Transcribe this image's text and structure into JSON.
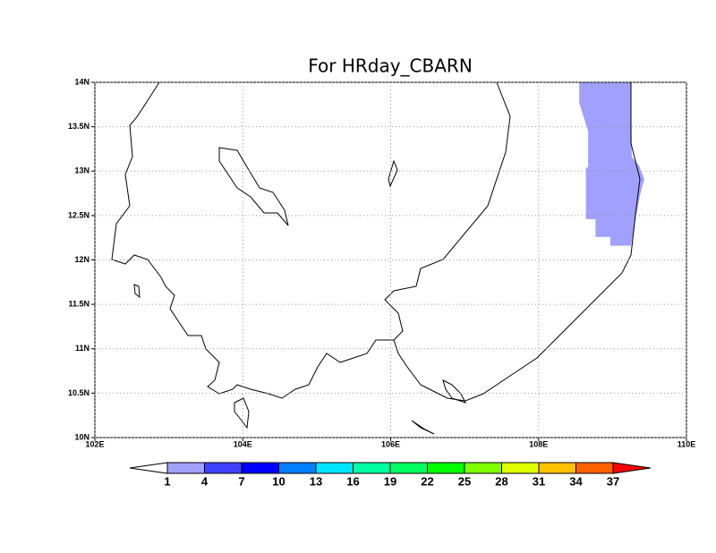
{
  "chart_data": {
    "type": "map",
    "title": "For HRday_CBARN",
    "xlim": [
      102,
      110
    ],
    "ylim": [
      10,
      14
    ],
    "xticks": [
      {
        "value": 102,
        "label": "102E"
      },
      {
        "value": 104,
        "label": "104E"
      },
      {
        "value": 106,
        "label": "106E"
      },
      {
        "value": 108,
        "label": "108E"
      },
      {
        "value": 110,
        "label": "110E"
      }
    ],
    "yticks": [
      {
        "value": 10,
        "label": "10N"
      },
      {
        "value": 10.5,
        "label": "10.5N"
      },
      {
        "value": 11,
        "label": "11N"
      },
      {
        "value": 11.5,
        "label": "11.5N"
      },
      {
        "value": 12,
        "label": "12N"
      },
      {
        "value": 12.5,
        "label": "12.5N"
      },
      {
        "value": 13,
        "label": "13N"
      },
      {
        "value": 13.5,
        "label": "13.5N"
      },
      {
        "value": 14,
        "label": "14N"
      }
    ],
    "grid": true,
    "shaded_region": {
      "color": "#a0a0ff",
      "lon": [
        108.55,
        109.25,
        109.26,
        109.36,
        109.43,
        109.38,
        109.31,
        109.25,
        108.97,
        108.97,
        108.77,
        108.77,
        108.64,
        108.64,
        108.67,
        108.67,
        108.55
      ],
      "lat": [
        14,
        14,
        13.16,
        13.06,
        12.91,
        12.76,
        12.46,
        12.16,
        12.16,
        12.26,
        12.26,
        12.46,
        12.46,
        13.04,
        13.04,
        13.45,
        13.77
      ]
    },
    "colorbar": {
      "levels": [
        1,
        4,
        7,
        10,
        13,
        16,
        19,
        22,
        25,
        28,
        31,
        34,
        37
      ],
      "colors": [
        "#ffffff",
        "#a0a0ff",
        "#4040ff",
        "#0000ff",
        "#0080ff",
        "#00e6ff",
        "#00ffa0",
        "#00ff60",
        "#00ff00",
        "#80ff00",
        "#e0ff00",
        "#ffc000",
        "#ff6000",
        "#ff0000"
      ]
    }
  }
}
